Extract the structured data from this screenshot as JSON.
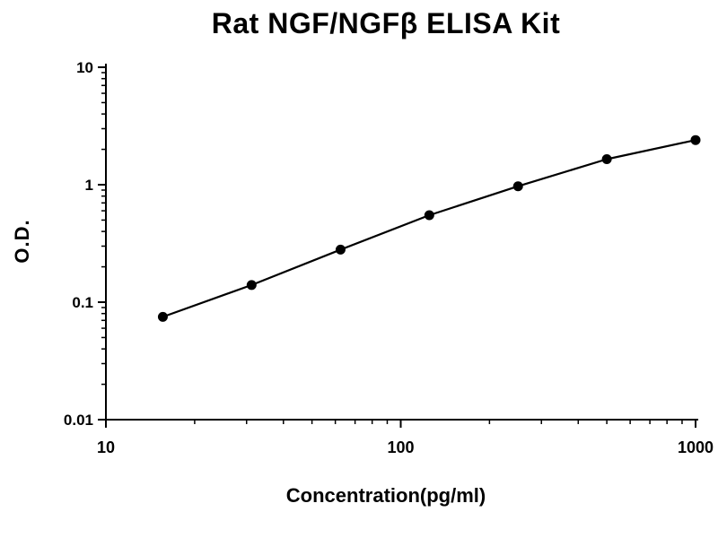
{
  "chart_data": {
    "type": "line",
    "title": "Rat NGF/NGFβ ELISA Kit",
    "xlabel": "Concentration(pg/ml)",
    "ylabel": "O.D.",
    "x_scale": "log",
    "y_scale": "log",
    "xlim": [
      10,
      1000
    ],
    "ylim": [
      0.01,
      10
    ],
    "grid": false,
    "legend": false,
    "x_ticks": {
      "values": [
        10,
        100,
        1000
      ],
      "labels": [
        "10",
        "100",
        "1000"
      ]
    },
    "y_ticks": {
      "values": [
        10,
        1,
        0.1,
        0.01
      ],
      "labels": [
        "10",
        "1",
        "0.1",
        "0.01"
      ]
    },
    "minor_ticks": true,
    "axis_color": "#000000",
    "series": [
      {
        "x": [
          15.6,
          31.2,
          62.5,
          125,
          250,
          500,
          1000
        ],
        "y": [
          0.075,
          0.14,
          0.28,
          0.55,
          0.97,
          1.65,
          2.4
        ],
        "line_color": "#000000",
        "marker": "circle",
        "marker_color": "#000000"
      }
    ]
  }
}
